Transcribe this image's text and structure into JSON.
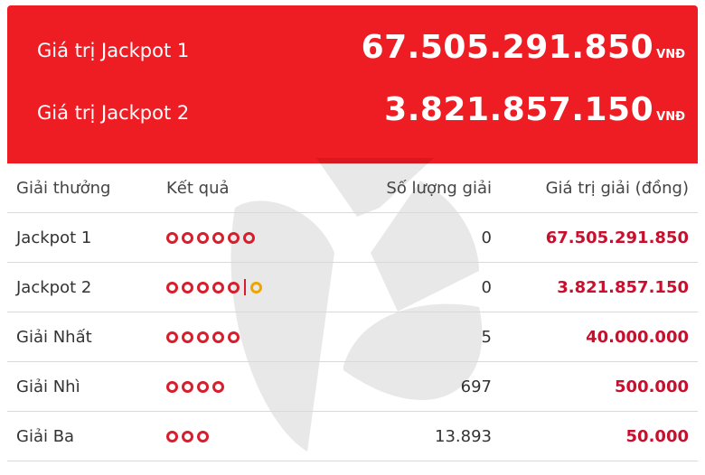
{
  "jackpots": [
    {
      "label": "Giá trị Jackpot 1",
      "amount": "67.505.291.850",
      "unit": "VNĐ"
    },
    {
      "label": "Giá trị Jackpot 2",
      "amount": "3.821.857.150",
      "unit": "VNĐ"
    }
  ],
  "table": {
    "headers": [
      "Giải thưởng",
      "Kết quả",
      "Số lượng giải",
      "Giá trị giải (đồng)"
    ],
    "rows": [
      {
        "prize": "Jackpot 1",
        "red_balls": 6,
        "gold_balls": 0,
        "count": "0",
        "value": "67.505.291.850"
      },
      {
        "prize": "Jackpot 2",
        "red_balls": 5,
        "gold_balls": 1,
        "count": "0",
        "value": "3.821.857.150"
      },
      {
        "prize": "Giải Nhất",
        "red_balls": 5,
        "gold_balls": 0,
        "count": "5",
        "value": "40.000.000"
      },
      {
        "prize": "Giải Nhì",
        "red_balls": 4,
        "gold_balls": 0,
        "count": "697",
        "value": "500.000"
      },
      {
        "prize": "Giải Ba",
        "red_balls": 3,
        "gold_balls": 0,
        "count": "13.893",
        "value": "50.000"
      }
    ]
  },
  "colors": {
    "banner": "#ee1d24",
    "ball_red": "#d81e2c",
    "ball_gold": "#f0a400",
    "value_red": "#c8102e"
  }
}
